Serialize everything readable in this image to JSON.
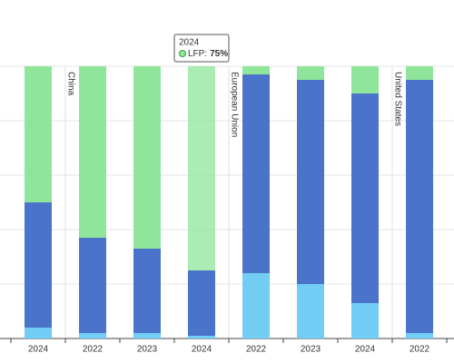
{
  "chart_data": {
    "type": "stacked-bar",
    "categories": [
      "2024",
      "2022",
      "2023",
      "2024",
      "2022",
      "2023",
      "2024",
      "2022"
    ],
    "groups": [
      {
        "label": "China",
        "start": 1
      },
      {
        "label": "European Union",
        "start": 4
      },
      {
        "label": "United States",
        "start": 7
      }
    ],
    "series": [
      {
        "color": "#72cdf4",
        "values": [
          4,
          2,
          2,
          1,
          24,
          20,
          13,
          2
        ]
      },
      {
        "color": "#4a74c9",
        "values": [
          46,
          35,
          31,
          24,
          73,
          75,
          77,
          93
        ]
      },
      {
        "name": "LFP",
        "color": "#8fe69b",
        "values": [
          50,
          63,
          67,
          75,
          3,
          5,
          10,
          5
        ]
      }
    ],
    "ylim": [
      0,
      100
    ],
    "yticks": [
      0,
      20,
      40,
      60,
      80,
      100
    ],
    "grid": true,
    "highlight": 3,
    "tooltip": {
      "title": "2024",
      "label": "LFP:",
      "value": "75%"
    }
  }
}
